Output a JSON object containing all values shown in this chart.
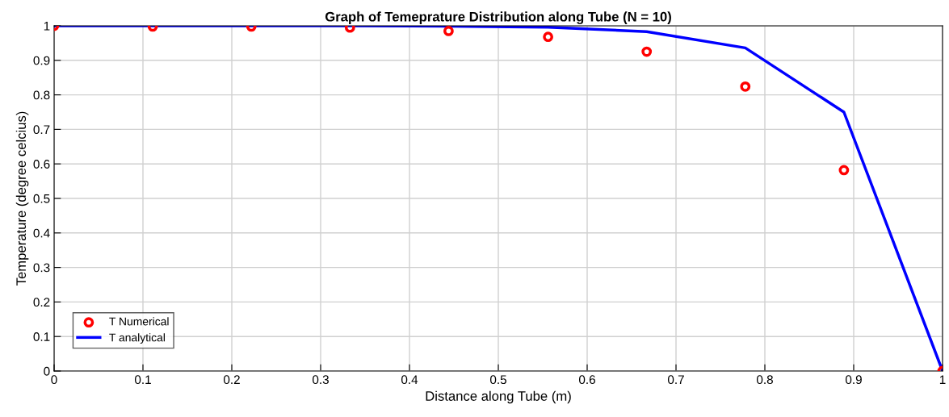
{
  "chart_data": {
    "type": "line",
    "title": "Graph of Temeprature Distribution along Tube (N = 10)",
    "xlabel": "Distance along Tube (m)",
    "ylabel": "Temperature (degree celcius)",
    "x": [
      0,
      0.111,
      0.222,
      0.333,
      0.444,
      0.556,
      0.667,
      0.778,
      0.889,
      1
    ],
    "series": [
      {
        "name": "T Numerical",
        "type": "scatter",
        "color": "#ff0000",
        "marker": "circle",
        "values": [
          1.0,
          0.998,
          0.998,
          0.995,
          0.985,
          0.968,
          0.925,
          0.824,
          0.582,
          0.0
        ]
      },
      {
        "name": "T analytical",
        "color": "#0000ff",
        "values": [
          1.0,
          1.0,
          1.0,
          1.0,
          0.999,
          0.996,
          0.983,
          0.936,
          0.75,
          0.0
        ]
      }
    ],
    "xlim": [
      0,
      1
    ],
    "ylim": [
      0,
      1
    ],
    "xticks": [
      0,
      0.1,
      0.2,
      0.3,
      0.4,
      0.5,
      0.6,
      0.7,
      0.8,
      0.9,
      1
    ],
    "yticks": [
      0,
      0.1,
      0.2,
      0.3,
      0.4,
      0.5,
      0.6,
      0.7,
      0.8,
      0.9,
      1
    ],
    "grid": true,
    "legend": "bottom left"
  }
}
